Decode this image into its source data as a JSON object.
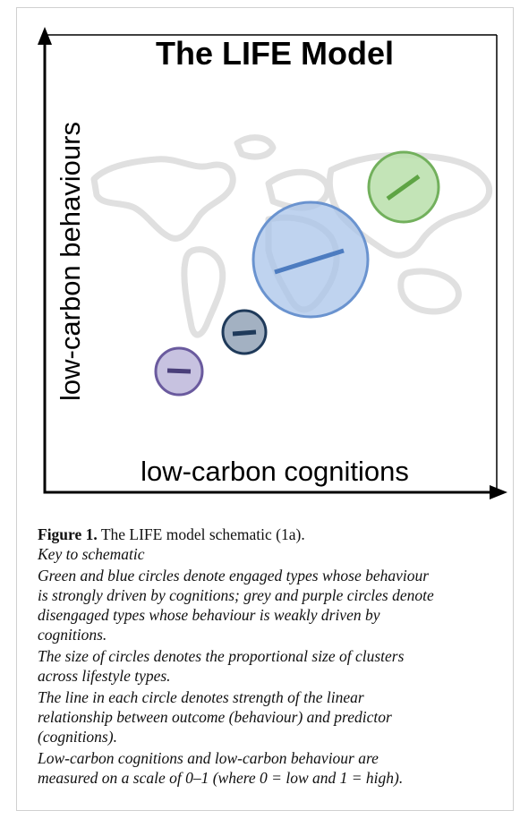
{
  "figure": {
    "title": "The LIFE Model",
    "y_axis_label": "low-carbon behaviours",
    "x_axis_label": "low-carbon cognitions"
  },
  "caption": {
    "label": "Figure 1.",
    "text": " The LIFE model schematic (1a).",
    "key_heading": "Key to schematic",
    "paragraphs": [
      {
        "lines": [
          "Green and blue circles denote engaged types whose behaviour",
          "is strongly driven by cognitions; grey and purple circles denote",
          "disengaged types whose behaviour is weakly driven by",
          "cognitions."
        ]
      },
      {
        "lines": [
          "The size of circles denotes the proportional size of clusters",
          "across lifestyle types."
        ]
      },
      {
        "lines": [
          "The line in each circle denotes strength of the linear",
          "relationship between outcome (behaviour) and predictor",
          "(cognitions)."
        ]
      },
      {
        "lines": [
          "Low-carbon cognitions and low-carbon behaviour are",
          "measured on a scale of 0–1 (where 0 = low and 1 = high)."
        ]
      }
    ]
  }
}
